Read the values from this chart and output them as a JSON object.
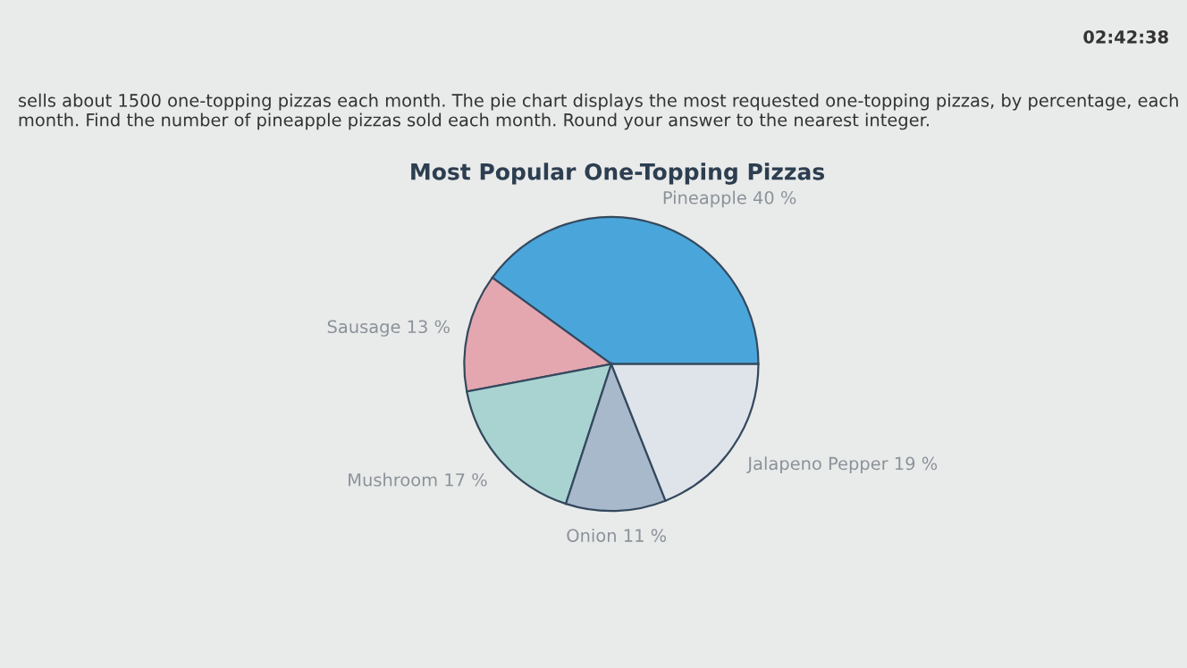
{
  "chart_data": {
    "type": "pie",
    "title": "Most Popular One-Topping Pizzas",
    "categories": [
      "Pineapple",
      "Sausage",
      "Mushroom",
      "Onion",
      "Jalapeno Pepper"
    ],
    "values": [
      40,
      13,
      17,
      11,
      19
    ],
    "value_labels": [
      "40 %",
      "13 %",
      "17 %",
      "11 %",
      "19 %"
    ],
    "colors": [
      "#4aa6da",
      "#e4a7b0",
      "#a9d3d1",
      "#a9b9cc",
      "#dfe4ea"
    ],
    "annotations": [
      "sells about 1500 one-topping pizzas each month. The pie chart displays the most requested one-topping pizzas, by percentage, each month. Find the number of pineapple pizzas sold each month. Round your answer to the nearest integer.",
      "02:42:38"
    ]
  }
}
